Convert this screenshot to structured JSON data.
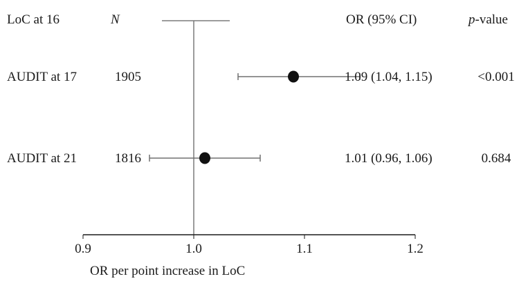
{
  "chart_data": {
    "type": "forest",
    "header": {
      "group": "LoC at 16",
      "n": "N",
      "or_ci": "OR (95% CI)",
      "p_italic": "p",
      "p_rest": "-value"
    },
    "rows": [
      {
        "label": "AUDIT at 17",
        "n": "1905",
        "or": 1.09,
        "ci_low": 1.04,
        "ci_high": 1.15,
        "ci_text": "1.09 (1.04, 1.15)",
        "p": "<0.001"
      },
      {
        "label": "AUDIT at 21",
        "n": "1816",
        "or": 1.01,
        "ci_low": 0.96,
        "ci_high": 1.06,
        "ci_text": "1.01 (0.96, 1.06)",
        "p": "0.684"
      }
    ],
    "xlim": [
      0.9,
      1.2
    ],
    "xticks": [
      "0.9",
      "1.0",
      "1.1",
      "1.2"
    ],
    "xtick_values": [
      0.9,
      1.0,
      1.1,
      1.2
    ],
    "reference_value": 1.0,
    "xlabel": "OR per point increase in LoC"
  },
  "colors": {
    "axis": "#1a1a1a",
    "reference_line": "#7a7a7a",
    "ci_line": "#707070",
    "point": "#111111"
  }
}
